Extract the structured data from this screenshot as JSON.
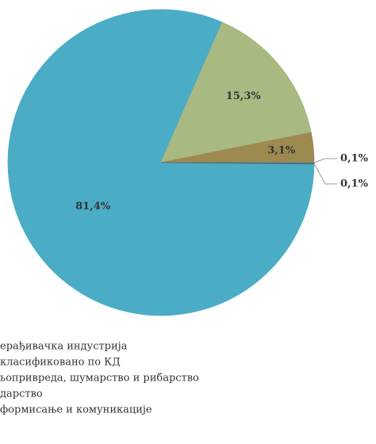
{
  "chart_data": {
    "type": "pie",
    "categories": [
      "ерађивачка индустрија",
      "класификовано по КД",
      "ьопривреда, шумарство и рибарство",
      "дарство",
      "формисање и комуникације"
    ],
    "values": [
      81.4,
      15.3,
      3.1,
      0.1,
      0.1
    ],
    "value_labels": [
      "81,4%",
      "15,3%",
      "3,1%",
      "0,1%",
      "0,1%"
    ],
    "colors": [
      "#4bacc6",
      "#a9b982",
      "#9c8a50",
      "#7f8c8d",
      "#4f6d6e"
    ]
  }
}
